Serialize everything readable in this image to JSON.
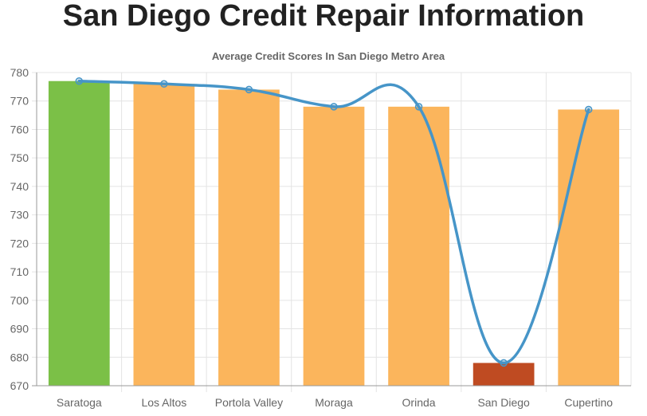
{
  "page": {
    "title": "San Diego Credit Repair Information"
  },
  "chart_data": {
    "type": "bar",
    "title": "Average Credit Scores In San Diego Metro Area",
    "categories": [
      "Saratoga",
      "Los Altos",
      "Portola Valley",
      "Moraga",
      "Orinda",
      "San Diego",
      "Cupertino"
    ],
    "values": [
      777,
      776,
      774,
      768,
      768,
      678,
      767
    ],
    "bar_colors": [
      "#7bc047",
      "#fbb55c",
      "#fbb55c",
      "#fbb55c",
      "#fbb55c",
      "#bf4b22",
      "#fbb55c"
    ],
    "line_series": {
      "values": [
        777,
        776,
        774,
        768,
        768,
        678,
        767
      ],
      "color": "#4695c8",
      "smooth": true
    },
    "ylim": [
      670,
      780
    ],
    "yticks": [
      670,
      680,
      690,
      700,
      710,
      720,
      730,
      740,
      750,
      760,
      770,
      780
    ],
    "grid": true,
    "xlabel": "",
    "ylabel": ""
  }
}
